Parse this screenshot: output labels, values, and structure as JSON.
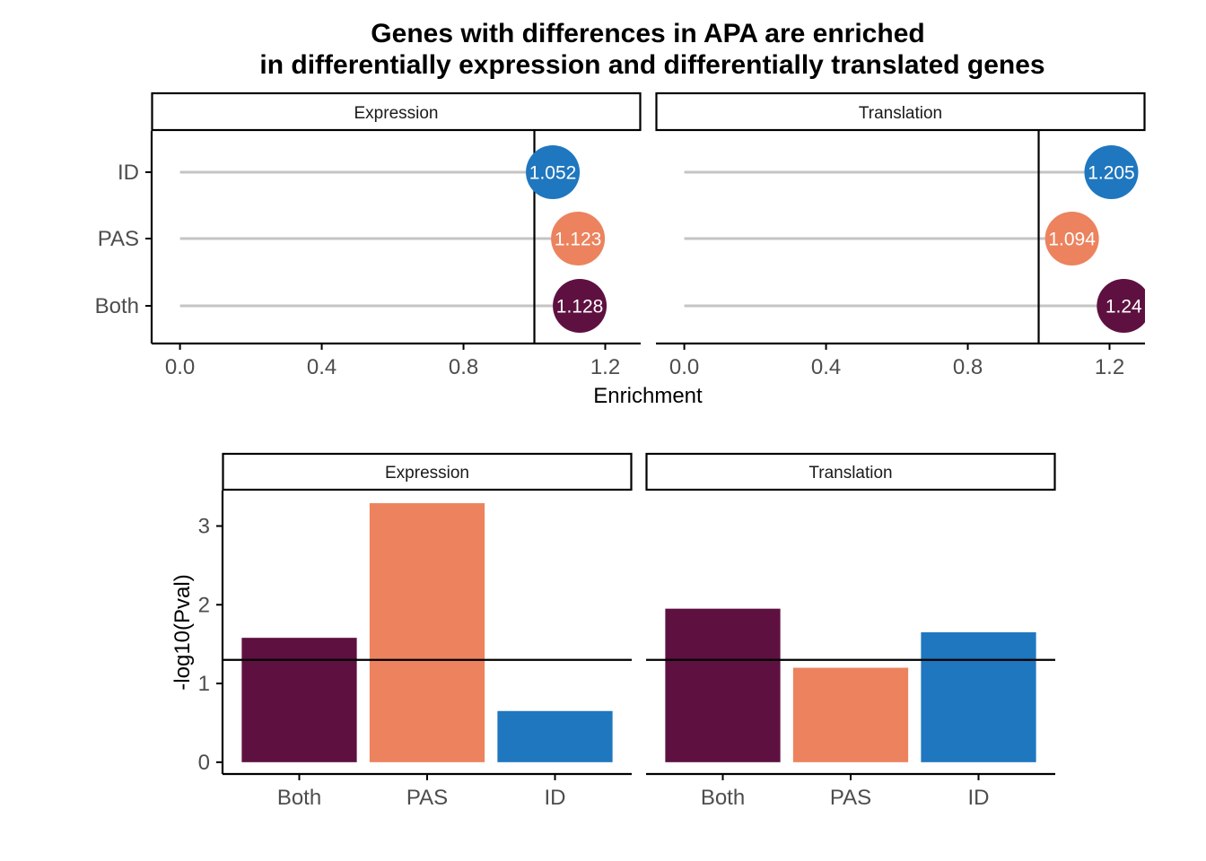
{
  "chart_data": [
    {
      "type": "scatter",
      "subtype": "lollipop",
      "title": "Genes with differences in APA are enriched\nin differentially expression and differentially translated genes",
      "title_lines": [
        "Genes with differences in APA are enriched",
        "in differentially expression and differentially translated genes"
      ],
      "xlabel": "Enrichment",
      "ylabel": "",
      "xlim": [
        -0.08,
        1.3
      ],
      "x_ticks": [
        0.0,
        0.4,
        0.8,
        1.2
      ],
      "x_tick_labels": [
        "0.0",
        "0.4",
        "0.8",
        "1.2"
      ],
      "categories": [
        "ID",
        "PAS",
        "Both"
      ],
      "reference_line_x": 1.0,
      "grid": false,
      "panels": [
        {
          "name": "Expression",
          "values": [
            {
              "category": "ID",
              "value": 1.052,
              "label": "1.052"
            },
            {
              "category": "PAS",
              "value": 1.123,
              "label": "1.123"
            },
            {
              "category": "Both",
              "value": 1.128,
              "label": "1.128"
            }
          ]
        },
        {
          "name": "Translation",
          "values": [
            {
              "category": "ID",
              "value": 1.205,
              "label": "1.205"
            },
            {
              "category": "PAS",
              "value": 1.094,
              "label": "1.094"
            },
            {
              "category": "Both",
              "value": 1.24,
              "label": "1.24"
            }
          ]
        }
      ]
    },
    {
      "type": "bar",
      "xlabel": "",
      "ylabel": "-log10(Pval)",
      "ylim": [
        -0.15,
        3.45
      ],
      "y_ticks": [
        0,
        1,
        2,
        3
      ],
      "y_tick_labels": [
        "0",
        "1",
        "2",
        "3"
      ],
      "categories": [
        "Both",
        "PAS",
        "ID"
      ],
      "reference_line_y": 1.3,
      "grid": false,
      "panels": [
        {
          "name": "Expression",
          "values": [
            1.58,
            3.29,
            0.65
          ]
        },
        {
          "name": "Translation",
          "values": [
            1.95,
            1.2,
            1.65
          ]
        }
      ]
    }
  ],
  "colors": {
    "ID": "#1f77bf",
    "PAS": "#ec835e",
    "Both": "#5e1140",
    "segment": "#c4c4c4",
    "reference_line": "#000000",
    "axis": "#000000",
    "tick_label": "#4d4d4d"
  }
}
